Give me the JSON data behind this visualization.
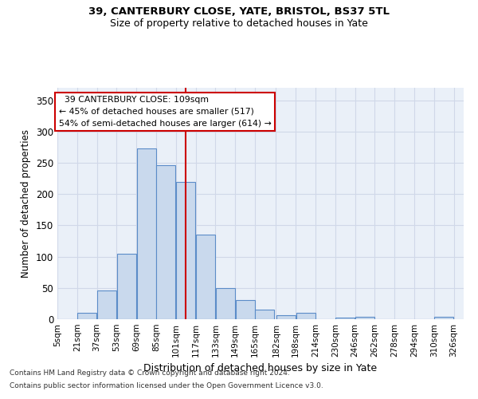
{
  "title1": "39, CANTERBURY CLOSE, YATE, BRISTOL, BS37 5TL",
  "title2": "Size of property relative to detached houses in Yate",
  "xlabel": "Distribution of detached houses by size in Yate",
  "ylabel": "Number of detached properties",
  "footnote1": "Contains HM Land Registry data © Crown copyright and database right 2024.",
  "footnote2": "Contains public sector information licensed under the Open Government Licence v3.0.",
  "annotation_line1": "  39 CANTERBURY CLOSE: 109sqm",
  "annotation_line2": "← 45% of detached houses are smaller (517)",
  "annotation_line3": "54% of semi-detached houses are larger (614) →",
  "property_size": 109,
  "bar_centers": [
    13,
    29,
    45,
    61,
    77,
    93,
    109,
    125,
    141,
    157,
    173,
    190,
    206,
    222,
    238,
    254,
    270,
    286,
    302,
    318
  ],
  "bar_width": 15.5,
  "bar_heights": [
    0,
    10,
    46,
    104,
    273,
    246,
    219,
    135,
    50,
    30,
    15,
    7,
    10,
    0,
    3,
    4,
    0,
    0,
    0,
    4
  ],
  "bar_face_color": "#c9d9ed",
  "bar_edge_color": "#5b8cc8",
  "vline_color": "#cc0000",
  "vline_x": 109,
  "annotation_box_color": "#cc0000",
  "grid_color": "#d0d8e8",
  "bg_color": "#eaf0f8",
  "yticks": [
    0,
    50,
    100,
    150,
    200,
    250,
    300,
    350
  ],
  "ylim": [
    0,
    370
  ],
  "xlim": [
    5,
    334
  ],
  "tick_positions": [
    5,
    21,
    37,
    53,
    69,
    85,
    101,
    117,
    133,
    149,
    165,
    182,
    198,
    214,
    230,
    246,
    262,
    278,
    294,
    310,
    326
  ],
  "tick_labels": [
    "5sqm",
    "21sqm",
    "37sqm",
    "53sqm",
    "69sqm",
    "85sqm",
    "101sqm",
    "117sqm",
    "133sqm",
    "149sqm",
    "165sqm",
    "182sqm",
    "198sqm",
    "214sqm",
    "230sqm",
    "246sqm",
    "262sqm",
    "278sqm",
    "294sqm",
    "310sqm",
    "326sqm"
  ]
}
